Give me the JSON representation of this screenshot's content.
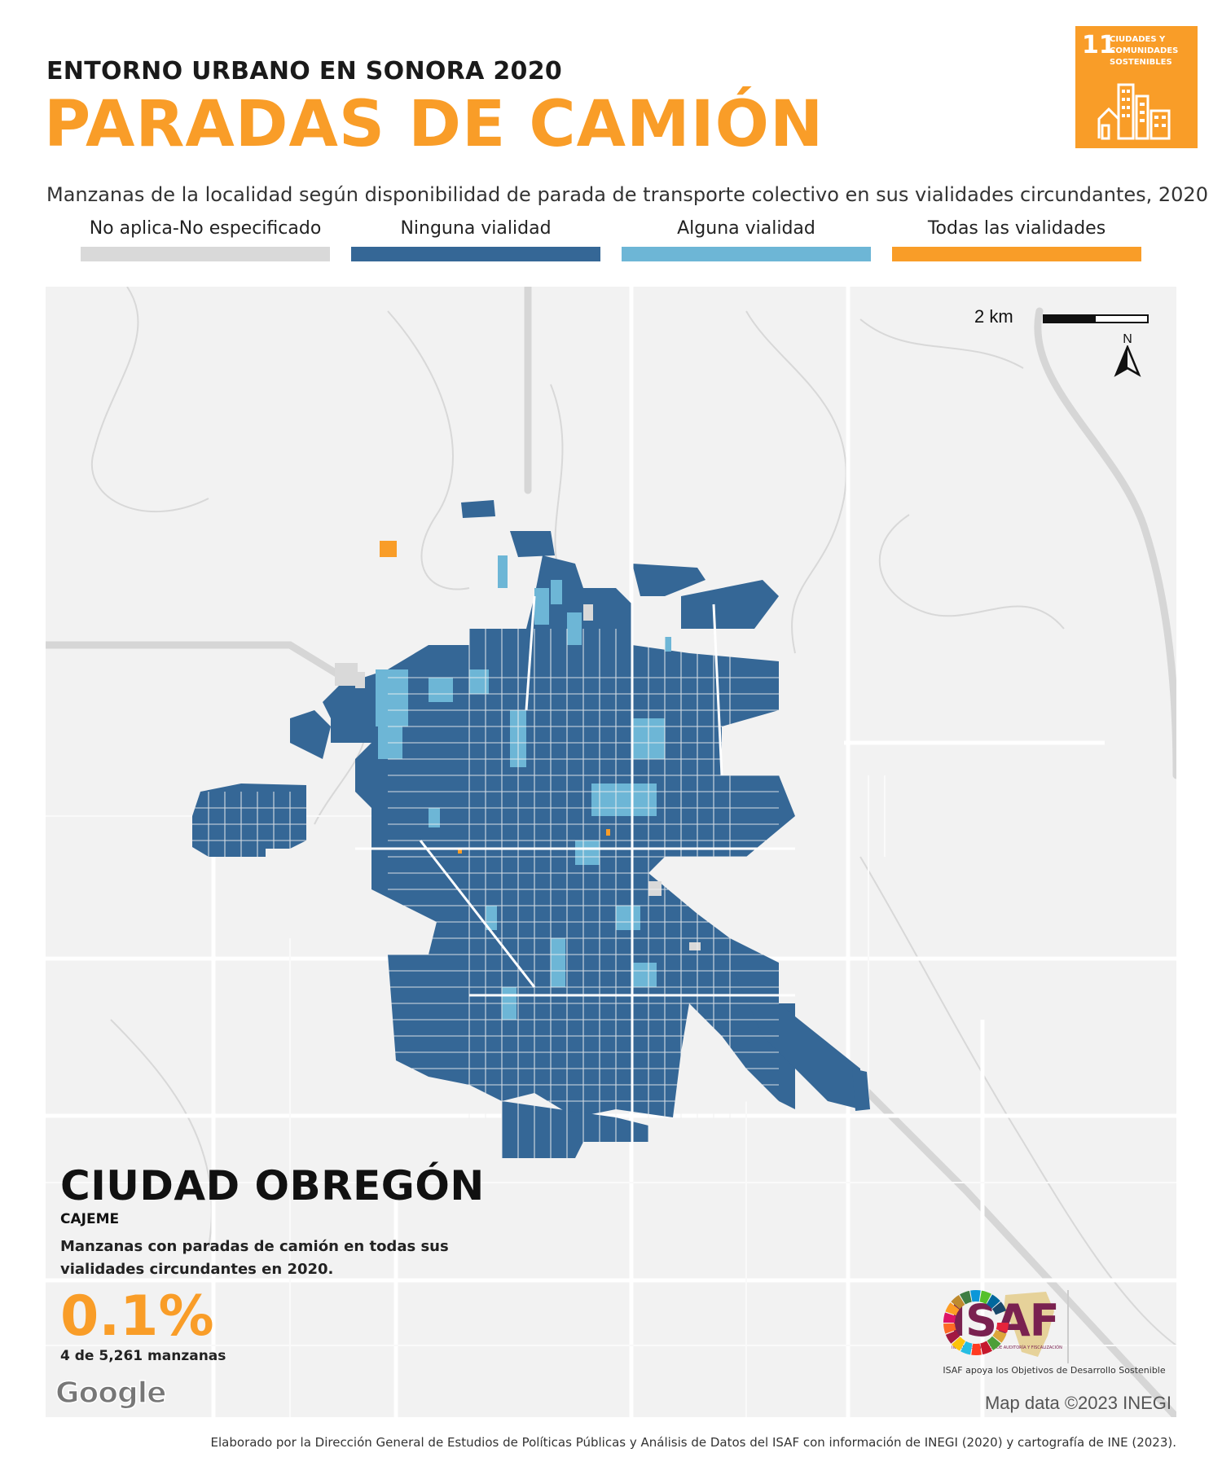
{
  "header": {
    "supertitle": "ENTORNO URBANO EN SONORA 2020",
    "title": "PARADAS DE CAMIÓN",
    "subtitle": "Manzanas de la localidad según disponibilidad de parada de transporte colectivo en sus vialidades circundantes, 2020"
  },
  "sdg_badge": {
    "number": "11",
    "text": "CIUDADES Y COMUNIDADES SOSTENIBLES",
    "color": "#f99d28"
  },
  "legend": [
    {
      "label": "No aplica-No especificado",
      "color": "#d9d9d9"
    },
    {
      "label": "Ninguna vialidad",
      "color": "#356796"
    },
    {
      "label": "Alguna vialidad",
      "color": "#6db6d6"
    },
    {
      "label": "Todas las vialidades",
      "color": "#f99d28"
    }
  ],
  "map": {
    "scale_label": "2 km",
    "north_label": "N",
    "attribution": "Map data ©2023 INEGI",
    "provider": "Google"
  },
  "city": {
    "name": "CIUDAD OBREGÓN",
    "municipality": "CAJEME",
    "description": "Manzanas con paradas de camión en todas sus vialidades circundantes en 2020.",
    "percentage": "0.1%",
    "count_text": "4 de 5,261 manzanas"
  },
  "logos": {
    "isaf": "ISAF",
    "isaf_small": "INSTITUTO SUPERIOR DE AUDITORÍA Y FISCALIZACIÓN",
    "caption": "ISAF apoya los Objetivos de Desarrollo Sostenible"
  },
  "footer": "Elaborado por la Dirección General de Estudios de Políticas Públicas y Análisis de Datos del ISAF con información de INEGI (2020) y cartografía de INE (2023)."
}
